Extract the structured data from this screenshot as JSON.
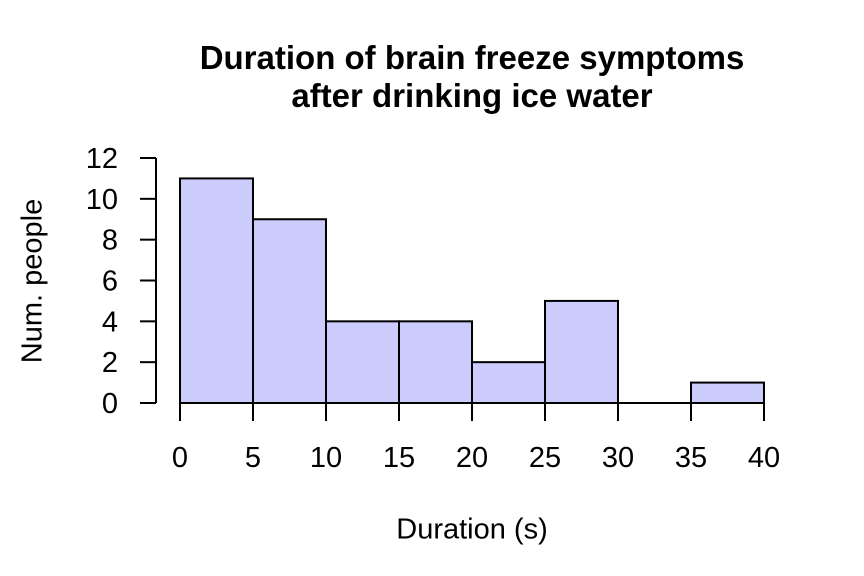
{
  "chart_data": {
    "type": "bar",
    "subtype": "histogram",
    "title": "Duration of brain freeze symptoms after drinking ice water",
    "title_lines": [
      "Duration of brain freeze symptoms",
      "after drinking ice water"
    ],
    "xlabel": "Duration (s)",
    "ylabel": "Num. people",
    "bin_edges": [
      0,
      5,
      10,
      15,
      20,
      25,
      30,
      35,
      40
    ],
    "categories": [
      "0-5",
      "5-10",
      "10-15",
      "15-20",
      "20-25",
      "25-30",
      "30-35",
      "35-40"
    ],
    "counts": [
      11,
      9,
      4,
      4,
      2,
      5,
      0,
      1
    ],
    "x_ticks": [
      0,
      5,
      10,
      15,
      20,
      25,
      30,
      35,
      40
    ],
    "y_ticks": [
      0,
      2,
      4,
      6,
      8,
      10,
      12
    ],
    "xlim": [
      0,
      40
    ],
    "ylim": [
      0,
      12
    ],
    "grid": "off",
    "legend": "none",
    "bar_fill": "#ccccfc",
    "bar_stroke": "#000000",
    "axis_color": "#000000",
    "text_color": "#000000",
    "background": "#ffffff"
  }
}
